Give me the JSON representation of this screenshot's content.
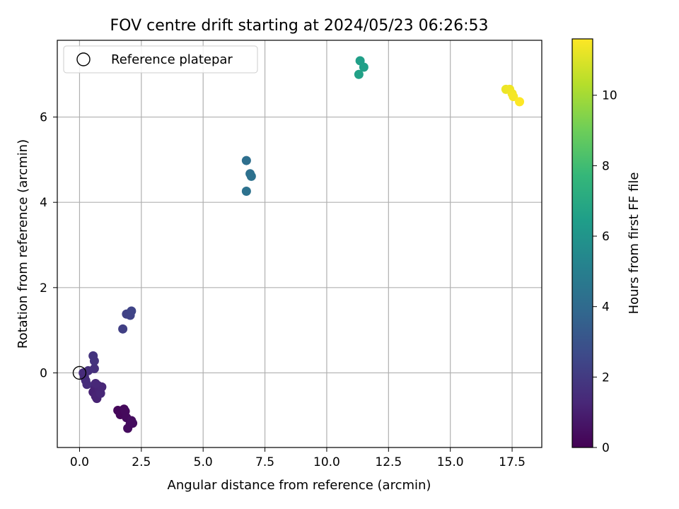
{
  "chart_data": {
    "type": "scatter",
    "title": "FOV centre drift starting at 2024/05/23 06:26:53",
    "xlabel": "Angular distance from reference (arcmin)",
    "ylabel": "Rotation from reference (arcmin)",
    "xlim": [
      -0.9,
      18.7
    ],
    "ylim": [
      -1.75,
      7.8
    ],
    "x_ticks": [
      0.0,
      2.5,
      5.0,
      7.5,
      10.0,
      12.5,
      15.0,
      17.5
    ],
    "x_tick_labels": [
      "0.0",
      "2.5",
      "5.0",
      "7.5",
      "10.0",
      "12.5",
      "15.0",
      "17.5"
    ],
    "y_ticks": [
      0,
      2,
      4,
      6
    ],
    "y_tick_labels": [
      "0",
      "2",
      "4",
      "6"
    ],
    "grid": true,
    "legend": {
      "placement": "top-left",
      "entries": [
        {
          "label": "Reference platepar",
          "marker": "hollow-circle"
        }
      ]
    },
    "reference_point": {
      "x": 0.0,
      "y": 0.0
    },
    "colorbar": {
      "label": "Hours from first FF file",
      "colormap": "viridis",
      "range": [
        0,
        11.6
      ],
      "ticks": [
        0,
        2,
        4,
        6,
        8,
        10
      ],
      "tick_labels": [
        "0",
        "2",
        "4",
        "6",
        "8",
        "10"
      ],
      "stops": [
        "#440154",
        "#482878",
        "#3e4989",
        "#31688e",
        "#26828e",
        "#1f9e89",
        "#35b779",
        "#6ece58",
        "#b5de2b",
        "#fde725"
      ]
    },
    "points": [
      {
        "x": 1.55,
        "y": -0.88,
        "c": 0.2
      },
      {
        "x": 1.65,
        "y": -0.98,
        "c": 0.2
      },
      {
        "x": 1.8,
        "y": -0.85,
        "c": 0.25
      },
      {
        "x": 1.85,
        "y": -0.9,
        "c": 0.3
      },
      {
        "x": 1.9,
        "y": -1.05,
        "c": 0.3
      },
      {
        "x": 1.95,
        "y": -1.3,
        "c": 0.35
      },
      {
        "x": 2.05,
        "y": -1.2,
        "c": 0.35
      },
      {
        "x": 2.1,
        "y": -1.12,
        "c": 0.4
      },
      {
        "x": 2.15,
        "y": -1.18,
        "c": 0.4
      },
      {
        "x": 0.55,
        "y": -0.45,
        "c": 1.1
      },
      {
        "x": 0.62,
        "y": -0.35,
        "c": 1.1
      },
      {
        "x": 0.65,
        "y": -0.55,
        "c": 1.15
      },
      {
        "x": 0.7,
        "y": -0.6,
        "c": 1.15
      },
      {
        "x": 0.75,
        "y": -0.3,
        "c": 1.2
      },
      {
        "x": 0.8,
        "y": -0.38,
        "c": 1.2
      },
      {
        "x": 0.85,
        "y": -0.48,
        "c": 1.25
      },
      {
        "x": 0.9,
        "y": -0.33,
        "c": 1.25
      },
      {
        "x": 0.65,
        "y": -0.25,
        "c": 1.3
      },
      {
        "x": 0.15,
        "y": 0.0,
        "c": 1.45
      },
      {
        "x": 0.2,
        "y": -0.1,
        "c": 1.45
      },
      {
        "x": 0.25,
        "y": -0.18,
        "c": 1.5
      },
      {
        "x": 0.3,
        "y": -0.27,
        "c": 1.5
      },
      {
        "x": 0.35,
        "y": 0.05,
        "c": 1.55
      },
      {
        "x": 0.6,
        "y": 0.1,
        "c": 1.6
      },
      {
        "x": 0.6,
        "y": 0.28,
        "c": 1.7
      },
      {
        "x": 0.55,
        "y": 0.4,
        "c": 1.75
      },
      {
        "x": 1.75,
        "y": 1.03,
        "c": 2.2
      },
      {
        "x": 1.9,
        "y": 1.38,
        "c": 2.3
      },
      {
        "x": 2.05,
        "y": 1.35,
        "c": 2.35
      },
      {
        "x": 2.1,
        "y": 1.45,
        "c": 2.4
      },
      {
        "x": 6.75,
        "y": 4.98,
        "c": 4.2
      },
      {
        "x": 6.9,
        "y": 4.67,
        "c": 4.25
      },
      {
        "x": 6.95,
        "y": 4.61,
        "c": 4.3
      },
      {
        "x": 6.75,
        "y": 4.26,
        "c": 4.35
      },
      {
        "x": 11.35,
        "y": 7.32,
        "c": 6.5
      },
      {
        "x": 11.5,
        "y": 7.17,
        "c": 6.55
      },
      {
        "x": 11.3,
        "y": 7.0,
        "c": 6.6
      },
      {
        "x": 17.25,
        "y": 6.65,
        "c": 11.3
      },
      {
        "x": 17.4,
        "y": 6.65,
        "c": 11.35
      },
      {
        "x": 17.5,
        "y": 6.55,
        "c": 11.4
      },
      {
        "x": 17.55,
        "y": 6.48,
        "c": 11.45
      },
      {
        "x": 17.8,
        "y": 6.36,
        "c": 11.6
      }
    ]
  }
}
